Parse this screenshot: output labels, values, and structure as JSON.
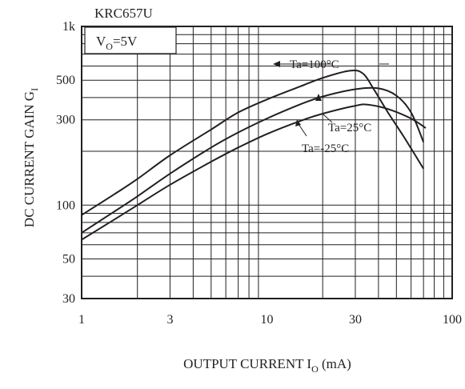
{
  "chart_data": {
    "type": "line",
    "title": "KRC657U",
    "condition": {
      "main": "V",
      "sub": "O",
      "rest": "=5V"
    },
    "xlabel": {
      "main": "OUTPUT CURRENT  I",
      "sub": "O",
      "rest": " (mA)"
    },
    "ylabel": {
      "main": "DC CURRENT GAIN  G",
      "sub": "I"
    },
    "x_scale": "log",
    "y_scale": "log",
    "xlim": [
      1,
      100
    ],
    "ylim": [
      30,
      1000
    ],
    "x_ticks": [
      1,
      3,
      10,
      30,
      100
    ],
    "x_tick_labels": [
      "1",
      "3",
      "10",
      "30",
      "100"
    ],
    "y_ticks": [
      30,
      50,
      100,
      300,
      500,
      1000
    ],
    "y_tick_labels": [
      "30",
      "50",
      "100",
      "300",
      "500",
      "1k"
    ],
    "grid": true,
    "series": [
      {
        "name": "Ta=100°C",
        "x": [
          1,
          1.5,
          2,
          3,
          5,
          7,
          10,
          15,
          20,
          28,
          33,
          38,
          45,
          55,
          70
        ],
        "y": [
          88,
          115,
          140,
          190,
          265,
          330,
          390,
          460,
          515,
          565,
          545,
          440,
          330,
          240,
          160
        ]
      },
      {
        "name": "Ta=25°C",
        "x": [
          1,
          1.5,
          2,
          3,
          5,
          7,
          10,
          15,
          20,
          30,
          40,
          50,
          60,
          70
        ],
        "y": [
          70,
          92,
          112,
          150,
          210,
          255,
          305,
          365,
          405,
          445,
          450,
          410,
          330,
          225
        ]
      },
      {
        "name": "Ta=-25°C",
        "x": [
          1,
          1.5,
          2,
          3,
          5,
          7,
          10,
          15,
          20,
          30,
          35,
          45,
          60,
          72
        ],
        "y": [
          64,
          83,
          100,
          130,
          175,
          210,
          250,
          295,
          325,
          360,
          365,
          345,
          305,
          270
        ]
      }
    ],
    "annotations": [
      "Ta=100°C",
      "Ta=25°C",
      "Ta=-25°C"
    ]
  }
}
